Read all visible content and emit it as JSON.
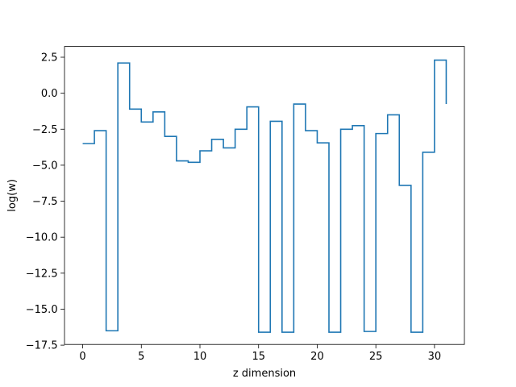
{
  "chart_data": {
    "type": "line",
    "style": "step-post",
    "xlabel": "z dimension",
    "ylabel": "log(w)",
    "xlim": [
      -1.55,
      32.55
    ],
    "ylim": [
      -17.45,
      3.25
    ],
    "x_ticks": [
      0,
      5,
      10,
      15,
      20,
      25,
      30
    ],
    "y_ticks": [
      2.5,
      0.0,
      -2.5,
      -5.0,
      -7.5,
      -10.0,
      -12.5,
      -15.0,
      -17.5
    ],
    "x_tick_labels": [
      "0",
      "5",
      "10",
      "15",
      "20",
      "25",
      "30"
    ],
    "y_tick_labels": [
      "2.5",
      "0.0",
      "−2.5",
      "−5.0",
      "−7.5",
      "−10.0",
      "−12.5",
      "−15.0",
      "−17.5"
    ],
    "grid": false,
    "legend": "none",
    "series": [
      {
        "color": "#1f77b4",
        "x": [
          0,
          1,
          2,
          3,
          4,
          5,
          6,
          7,
          8,
          9,
          10,
          11,
          12,
          13,
          14,
          15,
          16,
          17,
          18,
          19,
          20,
          21,
          22,
          23,
          24,
          25,
          26,
          27,
          28,
          29,
          30,
          31
        ],
        "values": [
          -3.5,
          -2.6,
          -16.5,
          2.1,
          -1.1,
          -2.0,
          -1.3,
          -3.0,
          -4.7,
          -4.8,
          -4.0,
          -3.2,
          -3.8,
          -2.5,
          -0.95,
          -16.6,
          -1.95,
          -16.6,
          -0.75,
          -2.6,
          -3.45,
          -16.6,
          -2.5,
          -2.25,
          -16.55,
          -2.8,
          -1.5,
          -6.4,
          -16.6,
          -4.1,
          2.3,
          -0.75
        ]
      }
    ]
  }
}
